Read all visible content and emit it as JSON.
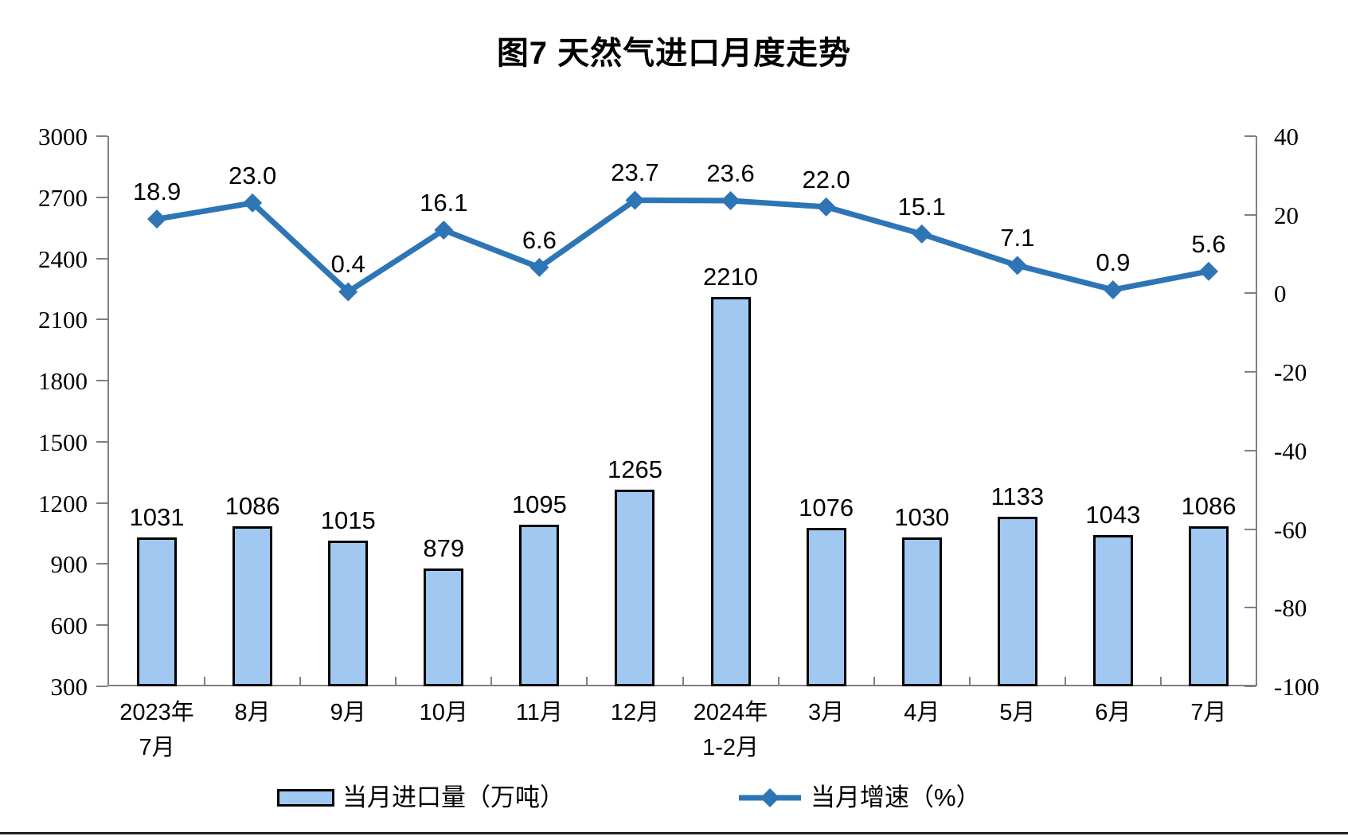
{
  "title": "图7 天然气进口月度走势",
  "chart_data": {
    "type": "bar",
    "subtype": "combo-bar-line-dual-axis",
    "title": "图7 天然气进口月度走势",
    "categories": [
      [
        "2023年",
        "7月"
      ],
      [
        "8月"
      ],
      [
        "9月"
      ],
      [
        "10月"
      ],
      [
        "11月"
      ],
      [
        "12月"
      ],
      [
        "2024年",
        "1-2月"
      ],
      [
        "3月"
      ],
      [
        "4月"
      ],
      [
        "5月"
      ],
      [
        "6月"
      ],
      [
        "7月"
      ]
    ],
    "series": [
      {
        "name": "当月进口量（万吨）",
        "type": "bar",
        "axis": "left",
        "values": [
          1031,
          1086,
          1015,
          879,
          1095,
          1265,
          2210,
          1076,
          1030,
          1133,
          1043,
          1086
        ],
        "labels": [
          "1031",
          "1086",
          "1015",
          "879",
          "1095",
          "1265",
          "2210",
          "1076",
          "1030",
          "1133",
          "1043",
          "1086"
        ]
      },
      {
        "name": "当月增速（%）",
        "type": "line",
        "axis": "right",
        "values": [
          18.9,
          23.0,
          0.4,
          16.1,
          6.6,
          23.7,
          23.6,
          22.0,
          15.1,
          7.1,
          0.9,
          5.6
        ],
        "labels": [
          "18.9",
          "23.0",
          "0.4",
          "16.1",
          "6.6",
          "23.7",
          "23.6",
          "22.0",
          "15.1",
          "7.1",
          "0.9",
          "5.6"
        ]
      }
    ],
    "left_axis": {
      "min": 300,
      "max": 3000,
      "step": 300,
      "ticks": [
        300,
        600,
        900,
        1200,
        1500,
        1800,
        2100,
        2400,
        2700,
        3000
      ]
    },
    "right_axis": {
      "min": -100,
      "max": 40,
      "step": 20,
      "ticks": [
        -100,
        -80,
        -60,
        -40,
        -20,
        0,
        20,
        40
      ]
    },
    "grid": false,
    "legend_position": "bottom",
    "colors": {
      "bar_fill": "#A0C8F0",
      "bar_border": "#000000",
      "line": "#2E75B6",
      "axis": "#808080",
      "text": "#000000"
    }
  }
}
